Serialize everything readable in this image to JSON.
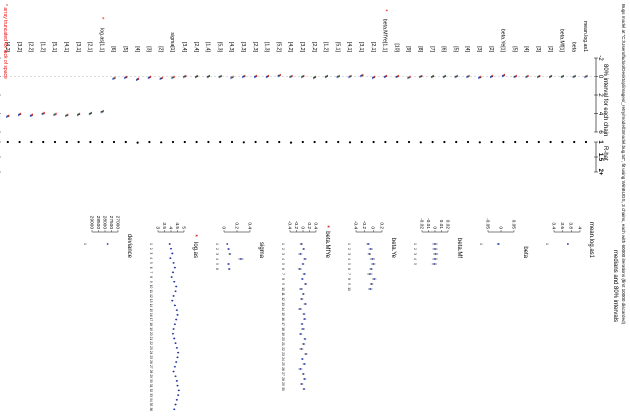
{
  "title": "Bugs model at \"C:/Users/fudoo/Desktop/images/_retry/model/3model.bug.txt\", fit using WinBUGS, 3 chains, each with 60000 iterations (first 10000 discarded)",
  "left_panel": {
    "interval_title": "80% interval for each chain",
    "rhat_title": "R-hat",
    "interval_ticks": [
      "-2",
      "0",
      "2",
      "4",
      "6"
    ],
    "rhat_ticks": [
      "1",
      "1.5",
      "2+"
    ],
    "footnote": "* array truncated for lack of space",
    "colors": {
      "chains": [
        "#cc0000",
        "#228833",
        "#2244cc"
      ],
      "footnote": "#ee0000",
      "grid": "#bbbbbb"
    },
    "groups": [
      {
        "label": "mean.log.as1",
        "n": 1,
        "rhats": [
          1.0
        ]
      },
      {
        "label": "beta",
        "n": 1,
        "rhats": [
          1.0
        ]
      },
      {
        "label": "beta.Mf",
        "n": 5,
        "rhats": [
          1.0,
          1.0,
          1.0,
          1.0,
          1.0
        ]
      },
      {
        "label": "beta.Ye",
        "n": 10,
        "rhats": [
          1.0,
          1.0,
          1.01,
          1.0,
          1.0,
          1.0,
          1.0,
          1.01,
          1.0,
          1.0
        ]
      },
      {
        "label": "beta.MfYe",
        "n": 18,
        "starred": true,
        "rhats": [
          1.0,
          1.0,
          1.0,
          1.01,
          1.0,
          1.0,
          1.0,
          1.0,
          1.02,
          1.0,
          1.0,
          1.0,
          1.01,
          1.0,
          1.0,
          1.0,
          1.0,
          1.0
        ]
      },
      {
        "label": "sigma",
        "n": 6,
        "rhats": [
          1.0,
          1.01,
          1.0,
          1.02,
          1.0,
          1.0
        ]
      },
      {
        "label": "log.as",
        "n": 9,
        "starred": true,
        "rhats": [
          1.0,
          1.0,
          1.0,
          1.0,
          1.0,
          1.0,
          1.0,
          1.0,
          1.0
        ]
      }
    ],
    "row_labels": [
      "mean.log.as1",
      "beta",
      "beta.Mf[1]",
      "[2]",
      "[3]",
      "[4]",
      "[5]",
      "beta.Ye[1]",
      "[2]",
      "[3]",
      "[4]",
      "[5]",
      "[6]",
      "[7]",
      "[8]",
      "[9]",
      "[10]",
      "beta.MfYe[1,1]",
      "[2,1]",
      "[3,1]",
      "[4,1]",
      "[5,1]",
      "[1,2]",
      "[2,2]",
      "[3,2]",
      "[4,2]",
      "[5,2]",
      "[1,3]",
      "[2,3]",
      "[3,3]",
      "[4,3]",
      "[5,3]",
      "[1,4]",
      "[2,4]",
      "[3,4]",
      "sigma[1]",
      "[2]",
      "[3]",
      "[4]",
      "[5]",
      "[6]",
      "log.as[1,1]",
      "[2,1]",
      "[3,1]",
      "[4,1]",
      "[5,1]",
      "[1,2]",
      "[2,2]",
      "[3,2]",
      "[4,2]"
    ]
  },
  "right_panel": {
    "title": "medians and 80% intervals",
    "colors": {
      "median": "#2233aa",
      "star": "#cc0000"
    },
    "panels": [
      {
        "name": "mean.log.as1",
        "ticks": [
          "3.4",
          "3.6",
          "3.8",
          "4"
        ]
      },
      {
        "name": "beta",
        "ticks": [
          "-0.05",
          "0",
          "0.05"
        ]
      },
      {
        "name": "beta.Mf",
        "ticks": [
          "-0.02",
          "-0.01",
          "0",
          "0.01",
          "0.02"
        ]
      },
      {
        "name": "beta.Ye",
        "ticks": [
          "-0.4",
          "-0.2",
          "0",
          "0.2"
        ]
      },
      {
        "name": "beta.MfYe",
        "starred": true,
        "ticks": [
          "-0.4",
          "-0.2",
          "0",
          "0.2",
          "0.4"
        ]
      },
      {
        "name": "sigma",
        "ticks": [
          "0",
          "0.2",
          "0.4"
        ]
      },
      {
        "name": "log.as",
        "starred": true,
        "ticks": [
          "3",
          "3.5",
          "4",
          "4.5",
          "5"
        ]
      },
      {
        "name": "deviance",
        "ticks": [
          "29000",
          "28500",
          "28000",
          "27500",
          "27000"
        ]
      }
    ]
  },
  "chart_data": [
    {
      "type": "scatter",
      "title": "80% interval for each chain",
      "xlabel": "",
      "ylabel": "",
      "xlim": [
        -2,
        6
      ],
      "grid": true,
      "medians": [
        0.0,
        0.0,
        0.0,
        0.0,
        0.0,
        0.0,
        0.0,
        -0.1,
        0.0,
        0.1,
        0.0,
        0.0,
        0.0,
        0.0,
        0.0,
        0.1,
        0.0,
        0.0,
        0.1,
        -0.1,
        0.0,
        0.0,
        0.0,
        0.1,
        0.0,
        0.0,
        -0.1,
        0.0,
        0.0,
        0.0,
        0.1,
        0.0,
        0.0,
        0.0,
        0.0,
        0.1,
        0.2,
        0.1,
        0.3,
        0.1,
        0.2,
        3.8,
        4.0,
        4.1,
        4.2,
        4.1,
        4.0,
        4.2,
        4.1,
        4.3
      ]
    },
    {
      "type": "scatter",
      "title": "R-hat",
      "xlim": [
        1,
        2
      ],
      "values": [
        1.0,
        1.0,
        1.0,
        1.0,
        1.0,
        1.0,
        1.0,
        1.0,
        1.0,
        1.01,
        1.0,
        1.0,
        1.0,
        1.0,
        1.01,
        1.0,
        1.0,
        1.0,
        1.0,
        1.0,
        1.01,
        1.0,
        1.0,
        1.0,
        1.0,
        1.02,
        1.0,
        1.0,
        1.0,
        1.01,
        1.0,
        1.0,
        1.0,
        1.0,
        1.0,
        1.0,
        1.01,
        1.0,
        1.02,
        1.0,
        1.0,
        1.0,
        1.0,
        1.0,
        1.0,
        1.0,
        1.0,
        1.0,
        1.0,
        1.0
      ]
    },
    {
      "type": "scatter",
      "title": "medians and 80% intervals",
      "series": [
        {
          "name": "mean.log.as1",
          "xlim": [
            3.4,
            4.0
          ],
          "medians": [
            3.72
          ],
          "half_widths": [
            0.02
          ]
        },
        {
          "name": "beta",
          "xlim": [
            -0.05,
            0.05
          ],
          "medians": [
            -0.01
          ],
          "half_widths": [
            0.006
          ]
        },
        {
          "name": "beta.Mf",
          "xlim": [
            -0.02,
            0.02
          ],
          "medians": [
            0.0,
            0.0,
            0.001,
            0.0,
            -0.001
          ],
          "half_widths": [
            0.004,
            0.004,
            0.004,
            0.004,
            0.004
          ]
        },
        {
          "name": "beta.Ye",
          "xlim": [
            -0.4,
            0.2
          ],
          "medians": [
            -0.12,
            -0.06,
            -0.09,
            -0.02,
            0.0,
            -0.05,
            -0.08,
            0.02,
            -0.04,
            -0.07
          ],
          "half_widths": [
            0.04,
            0.05,
            0.04,
            0.06,
            0.05,
            0.04,
            0.06,
            0.05,
            0.04,
            0.05
          ]
        },
        {
          "name": "beta.MfYe",
          "xlim": [
            -0.4,
            0.4
          ],
          "medians": [
            -0.05,
            0.02,
            -0.08,
            0.06,
            0.0,
            -0.1,
            0.04,
            -0.02,
            0.08,
            -0.06,
            0.01,
            -0.04,
            0.07,
            -0.09,
            0.03,
            0.05,
            -0.03,
            0.0,
            -0.07,
            0.06,
            0.02,
            -0.05,
            0.09,
            -0.02,
            0.04,
            -0.08,
            0.01,
            0.05,
            -0.04,
            0.03
          ],
          "half_widths": [
            0.05,
            0.04,
            0.06,
            0.05,
            0.04,
            0.06,
            0.05,
            0.04,
            0.05,
            0.06,
            0.04,
            0.05,
            0.05,
            0.06,
            0.04,
            0.05,
            0.04,
            0.06,
            0.05,
            0.04,
            0.05,
            0.06,
            0.05,
            0.04,
            0.05,
            0.06,
            0.04,
            0.05,
            0.05,
            0.04
          ]
        },
        {
          "name": "sigma",
          "xlim": [
            0,
            0.4
          ],
          "medians": [
            0.05,
            0.07,
            0.09,
            0.26,
            0.07,
            0.08
          ],
          "half_widths": [
            0.01,
            0.02,
            0.02,
            0.04,
            0.02,
            0.02
          ]
        },
        {
          "name": "log.as",
          "xlim": [
            3,
            5
          ],
          "medians": [
            3.9,
            4.0,
            4.1,
            3.95,
            4.2,
            4.3,
            4.15,
            4.05,
            4.25,
            4.4,
            4.35,
            4.2,
            4.1,
            4.3,
            4.45,
            4.5,
            4.4,
            4.3,
            4.2,
            4.15,
            4.25,
            4.35,
            4.45,
            4.55,
            4.5,
            4.4,
            4.3,
            4.2,
            4.35,
            4.45,
            4.5,
            4.6,
            4.55,
            4.45,
            4.35,
            4.25
          ],
          "half_widths": [
            0.08,
            0.08,
            0.08,
            0.08,
            0.08,
            0.08,
            0.08,
            0.08,
            0.08,
            0.08,
            0.08,
            0.08,
            0.08,
            0.08,
            0.08,
            0.08,
            0.08,
            0.08,
            0.08,
            0.08,
            0.08,
            0.08,
            0.08,
            0.08,
            0.08,
            0.08,
            0.08,
            0.08,
            0.08,
            0.08,
            0.08,
            0.08,
            0.08,
            0.08,
            0.08,
            0.08
          ]
        },
        {
          "name": "deviance",
          "xlim": [
            27000,
            29000
          ],
          "medians": [
            28200
          ],
          "half_widths": [
            40
          ]
        }
      ]
    }
  ]
}
